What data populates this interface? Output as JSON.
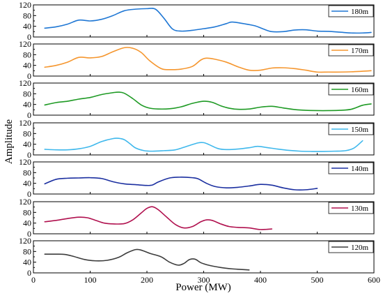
{
  "chart_data": {
    "type": "line",
    "xlabel": "Power (MW)",
    "ylabel": "Amplitude",
    "xlim": [
      0,
      600
    ],
    "ylim": [
      0,
      120
    ],
    "x_ticks": [
      "0",
      "100",
      "200",
      "300",
      "400",
      "500",
      "600"
    ],
    "y_ticks": [
      "0",
      "40",
      "80",
      "120"
    ],
    "y_minor_ticks": [
      "20",
      "60",
      "100"
    ],
    "grid": false,
    "legend_position": "top-right",
    "series": [
      {
        "name": "180m",
        "color": "#1f77d4",
        "points": [
          [
            20,
            33
          ],
          [
            40,
            38
          ],
          [
            60,
            48
          ],
          [
            80,
            63
          ],
          [
            100,
            60
          ],
          [
            120,
            66
          ],
          [
            140,
            80
          ],
          [
            160,
            98
          ],
          [
            180,
            104
          ],
          [
            200,
            106
          ],
          [
            215,
            104
          ],
          [
            230,
            70
          ],
          [
            245,
            30
          ],
          [
            260,
            22
          ],
          [
            280,
            25
          ],
          [
            300,
            31
          ],
          [
            320,
            38
          ],
          [
            340,
            50
          ],
          [
            350,
            56
          ],
          [
            370,
            50
          ],
          [
            390,
            42
          ],
          [
            405,
            30
          ],
          [
            420,
            20
          ],
          [
            440,
            20
          ],
          [
            460,
            26
          ],
          [
            480,
            27
          ],
          [
            500,
            22
          ],
          [
            520,
            21
          ],
          [
            540,
            18
          ],
          [
            560,
            15
          ],
          [
            580,
            15
          ],
          [
            595,
            17
          ]
        ]
      },
      {
        "name": "170m",
        "color": "#f5962e",
        "points": [
          [
            20,
            33
          ],
          [
            40,
            40
          ],
          [
            60,
            52
          ],
          [
            80,
            70
          ],
          [
            100,
            68
          ],
          [
            120,
            73
          ],
          [
            140,
            91
          ],
          [
            160,
            106
          ],
          [
            175,
            104
          ],
          [
            190,
            88
          ],
          [
            205,
            57
          ],
          [
            225,
            28
          ],
          [
            240,
            24
          ],
          [
            260,
            26
          ],
          [
            280,
            36
          ],
          [
            295,
            60
          ],
          [
            305,
            67
          ],
          [
            320,
            63
          ],
          [
            340,
            52
          ],
          [
            360,
            35
          ],
          [
            380,
            22
          ],
          [
            400,
            22
          ],
          [
            420,
            30
          ],
          [
            440,
            31
          ],
          [
            460,
            28
          ],
          [
            480,
            22
          ],
          [
            500,
            15
          ],
          [
            520,
            15
          ],
          [
            540,
            15
          ],
          [
            560,
            16
          ],
          [
            580,
            18
          ],
          [
            595,
            20
          ]
        ]
      },
      {
        "name": "160m",
        "color": "#1e9a24",
        "points": [
          [
            20,
            38
          ],
          [
            40,
            47
          ],
          [
            60,
            52
          ],
          [
            80,
            60
          ],
          [
            100,
            66
          ],
          [
            120,
            77
          ],
          [
            140,
            84
          ],
          [
            150,
            86
          ],
          [
            160,
            82
          ],
          [
            175,
            62
          ],
          [
            190,
            38
          ],
          [
            205,
            26
          ],
          [
            220,
            23
          ],
          [
            240,
            24
          ],
          [
            260,
            31
          ],
          [
            280,
            44
          ],
          [
            300,
            52
          ],
          [
            315,
            48
          ],
          [
            330,
            35
          ],
          [
            345,
            26
          ],
          [
            360,
            22
          ],
          [
            380,
            23
          ],
          [
            400,
            30
          ],
          [
            420,
            33
          ],
          [
            440,
            27
          ],
          [
            460,
            21
          ],
          [
            480,
            18
          ],
          [
            500,
            17
          ],
          [
            520,
            17
          ],
          [
            540,
            18
          ],
          [
            560,
            22
          ],
          [
            580,
            37
          ],
          [
            595,
            42
          ]
        ]
      },
      {
        "name": "150m",
        "color": "#3fb8ec",
        "points": [
          [
            20,
            21
          ],
          [
            40,
            19
          ],
          [
            60,
            19
          ],
          [
            80,
            23
          ],
          [
            100,
            32
          ],
          [
            120,
            50
          ],
          [
            140,
            61
          ],
          [
            150,
            62
          ],
          [
            160,
            57
          ],
          [
            170,
            42
          ],
          [
            180,
            26
          ],
          [
            195,
            16
          ],
          [
            210,
            14
          ],
          [
            230,
            16
          ],
          [
            250,
            19
          ],
          [
            270,
            32
          ],
          [
            290,
            45
          ],
          [
            300,
            46
          ],
          [
            310,
            38
          ],
          [
            325,
            24
          ],
          [
            340,
            20
          ],
          [
            360,
            22
          ],
          [
            380,
            27
          ],
          [
            395,
            32
          ],
          [
            410,
            28
          ],
          [
            430,
            22
          ],
          [
            450,
            17
          ],
          [
            470,
            14
          ],
          [
            490,
            13
          ],
          [
            510,
            13
          ],
          [
            530,
            14
          ],
          [
            550,
            16
          ],
          [
            565,
            26
          ],
          [
            580,
            53
          ]
        ]
      },
      {
        "name": "140m",
        "color": "#1b2fa0",
        "points": [
          [
            20,
            38
          ],
          [
            40,
            55
          ],
          [
            60,
            59
          ],
          [
            80,
            60
          ],
          [
            100,
            61
          ],
          [
            120,
            58
          ],
          [
            140,
            46
          ],
          [
            160,
            38
          ],
          [
            180,
            35
          ],
          [
            200,
            32
          ],
          [
            210,
            34
          ],
          [
            220,
            45
          ],
          [
            240,
            60
          ],
          [
            260,
            63
          ],
          [
            280,
            61
          ],
          [
            290,
            57
          ],
          [
            305,
            40
          ],
          [
            320,
            28
          ],
          [
            340,
            23
          ],
          [
            360,
            25
          ],
          [
            380,
            30
          ],
          [
            400,
            36
          ],
          [
            420,
            33
          ],
          [
            440,
            23
          ],
          [
            460,
            16
          ],
          [
            480,
            16
          ],
          [
            500,
            21
          ]
        ]
      },
      {
        "name": "130m",
        "color": "#b0104e",
        "points": [
          [
            20,
            45
          ],
          [
            40,
            50
          ],
          [
            60,
            57
          ],
          [
            80,
            62
          ],
          [
            95,
            60
          ],
          [
            110,
            50
          ],
          [
            125,
            40
          ],
          [
            140,
            37
          ],
          [
            160,
            38
          ],
          [
            175,
            52
          ],
          [
            190,
            78
          ],
          [
            200,
            95
          ],
          [
            210,
            101
          ],
          [
            220,
            90
          ],
          [
            235,
            62
          ],
          [
            250,
            35
          ],
          [
            265,
            22
          ],
          [
            280,
            27
          ],
          [
            295,
            45
          ],
          [
            305,
            52
          ],
          [
            315,
            50
          ],
          [
            330,
            37
          ],
          [
            345,
            27
          ],
          [
            360,
            24
          ],
          [
            380,
            22
          ],
          [
            400,
            16
          ],
          [
            420,
            18
          ]
        ]
      },
      {
        "name": "120m",
        "color": "#3c3c3c",
        "points": [
          [
            20,
            70
          ],
          [
            40,
            70
          ],
          [
            55,
            69
          ],
          [
            70,
            62
          ],
          [
            90,
            50
          ],
          [
            110,
            45
          ],
          [
            130,
            47
          ],
          [
            150,
            58
          ],
          [
            165,
            75
          ],
          [
            180,
            87
          ],
          [
            190,
            85
          ],
          [
            205,
            73
          ],
          [
            225,
            60
          ],
          [
            240,
            40
          ],
          [
            255,
            29
          ],
          [
            265,
            35
          ],
          [
            275,
            50
          ],
          [
            285,
            51
          ],
          [
            295,
            38
          ],
          [
            310,
            28
          ],
          [
            330,
            20
          ],
          [
            350,
            15
          ],
          [
            365,
            13
          ],
          [
            380,
            11
          ]
        ]
      }
    ]
  }
}
